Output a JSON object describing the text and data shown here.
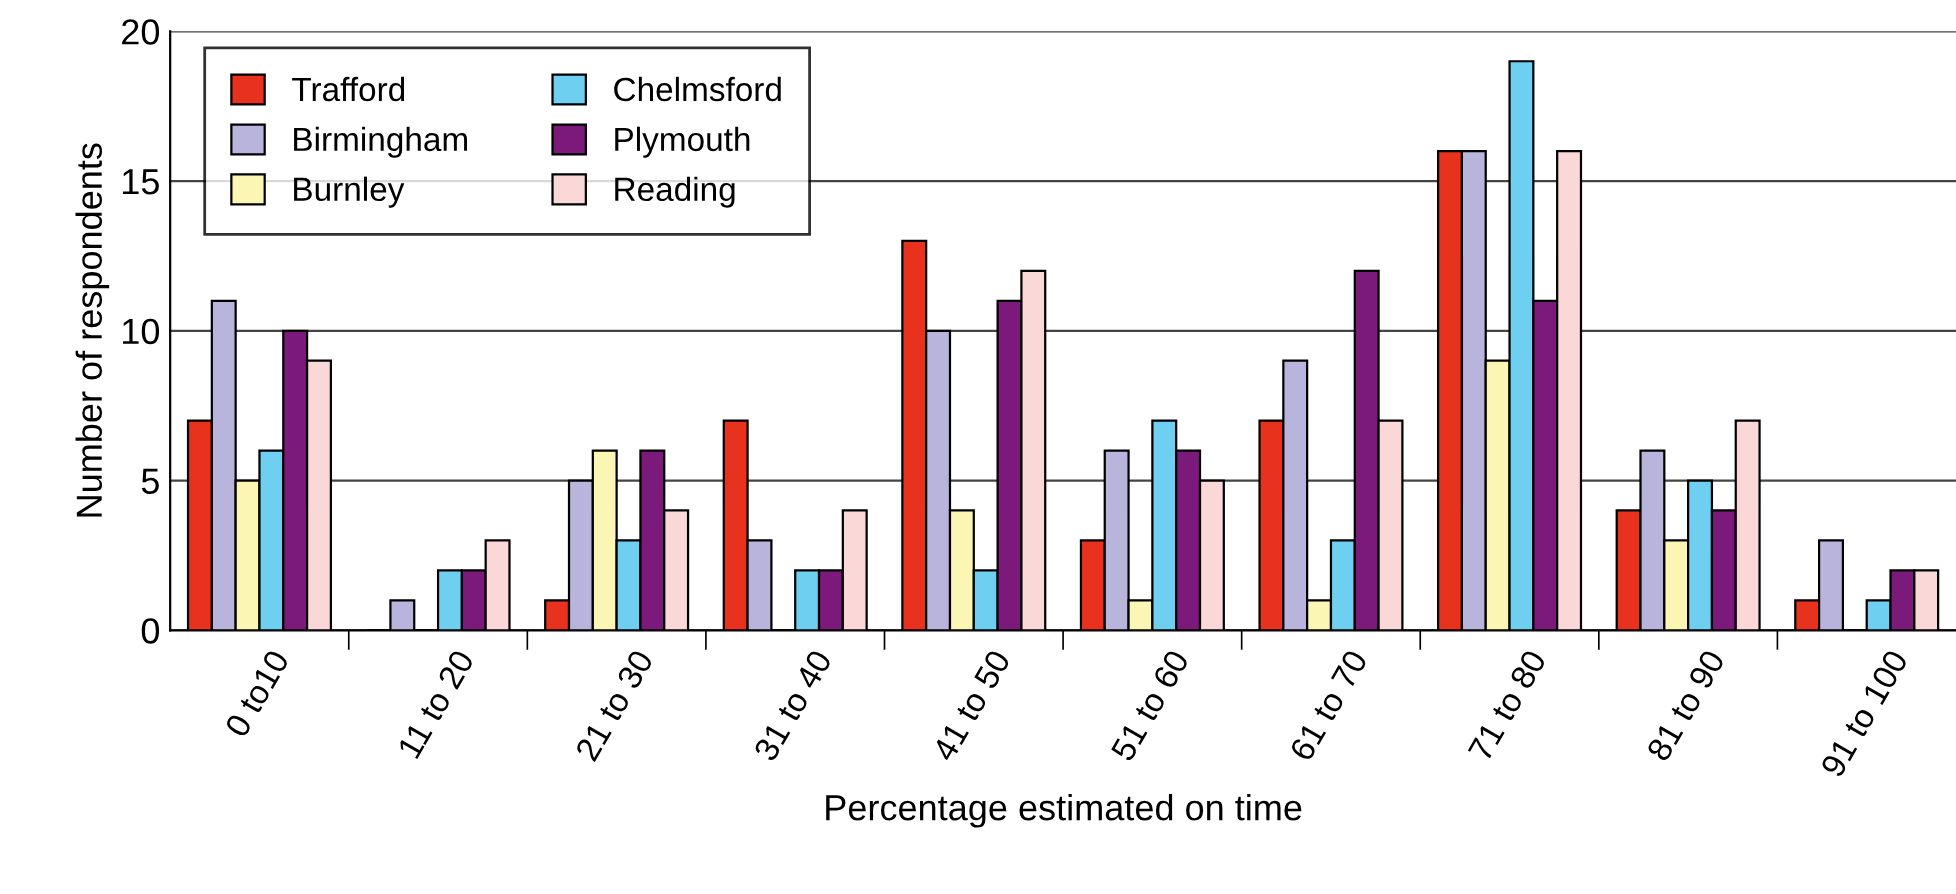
{
  "chart_data": {
    "type": "bar",
    "xlabel": "Percentage estimated on time",
    "ylabel": "Number of respondents",
    "categories": [
      "0 to10",
      "11 to 20",
      "21 to 30",
      "31 to 40",
      "41 to 50",
      "51 to 60",
      "61 to 70",
      "71 to 80",
      "81 to 90",
      "91 to 100"
    ],
    "series": [
      {
        "name": "Trafford",
        "color": "#e8321e",
        "values": [
          7,
          0,
          1,
          7,
          13,
          3,
          7,
          16,
          4,
          1
        ]
      },
      {
        "name": "Birmingham",
        "color": "#b8b4dc",
        "values": [
          11,
          1,
          5,
          3,
          10,
          6,
          9,
          16,
          6,
          3
        ]
      },
      {
        "name": "Burnley",
        "color": "#fbf6b4",
        "values": [
          5,
          0,
          6,
          0,
          4,
          1,
          1,
          9,
          3,
          0
        ]
      },
      {
        "name": "Chelmsford",
        "color": "#6fcff0",
        "values": [
          6,
          2,
          3,
          2,
          2,
          7,
          3,
          19,
          5,
          1
        ]
      },
      {
        "name": "Plymouth",
        "color": "#7b1a7a",
        "values": [
          10,
          2,
          6,
          2,
          11,
          6,
          12,
          11,
          4,
          2
        ]
      },
      {
        "name": "Reading",
        "color": "#fbd8d8",
        "values": [
          9,
          3,
          4,
          4,
          12,
          5,
          7,
          16,
          7,
          2
        ]
      }
    ],
    "ylim": [
      0,
      20
    ],
    "yticks": [
      0,
      5,
      10,
      15,
      20
    ],
    "grid": "y",
    "legend": "top left"
  }
}
